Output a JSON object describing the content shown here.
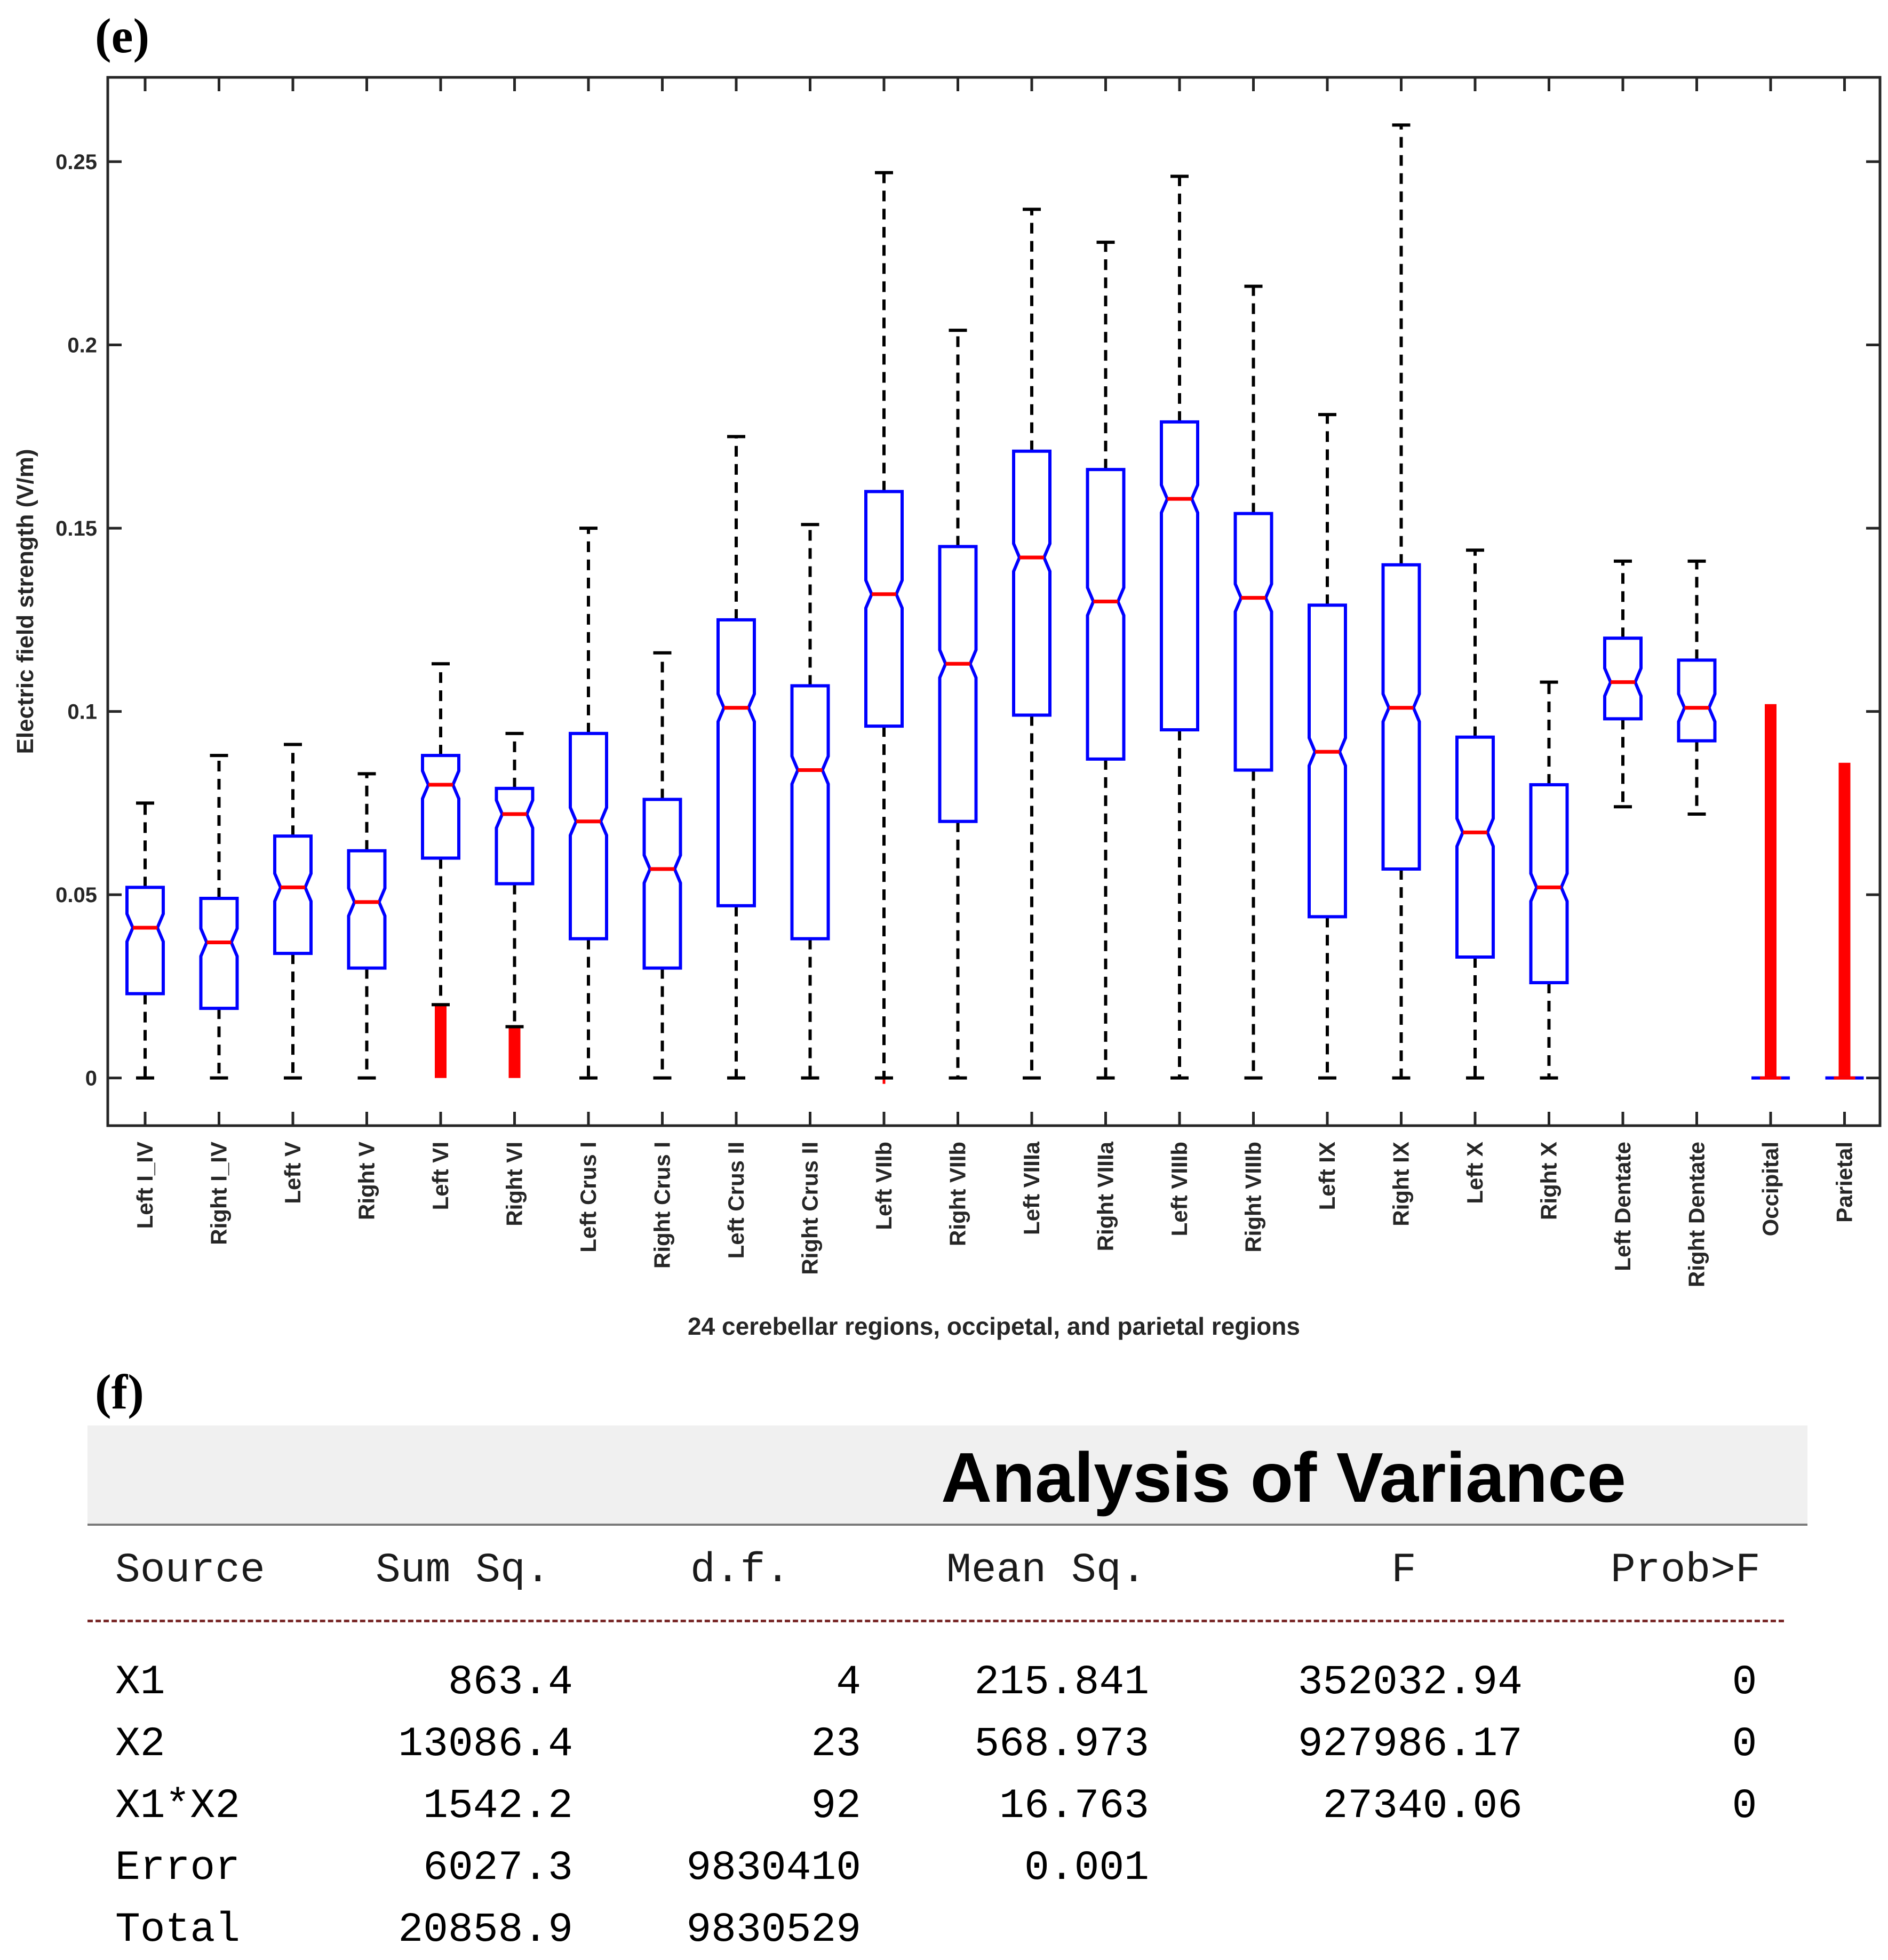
{
  "panel_e_label": "(e)",
  "panel_f_label": "(f)",
  "chart_data": {
    "type": "boxplot",
    "title": "",
    "xlabel": "24 cerebellar regions, occipetal, and parietal regions",
    "ylabel": "Electric field strength (V/m)",
    "ylim": [
      -0.013,
      0.273
    ],
    "yticks": [
      0,
      0.05,
      0.1,
      0.15,
      0.2,
      0.25
    ],
    "ytick_labels": [
      "0",
      "0.05",
      "0.1",
      "0.15",
      "0.2",
      "0.25"
    ],
    "notched": true,
    "colors": {
      "box": "#0000ff",
      "median": "#ff0000",
      "whisker": "#000000",
      "outlier": "#ff0000"
    },
    "categories": [
      "Left I_IV",
      "Right I_IV",
      "Left V",
      "Right V",
      "Left VI",
      "Right VI",
      "Left Crus I",
      "Right Crus I",
      "Left Crus II",
      "Right Crus II",
      "Left VIIb",
      "Right VIIb",
      "Left VIIIa",
      "Right VIIIa",
      "Left VIIIb",
      "Right VIIIb",
      "Left IX",
      "Right IX",
      "Left X",
      "Right X",
      "Left Dentate",
      "Right Dentate",
      "Occipital",
      "Parietal"
    ],
    "boxes": [
      {
        "whisker_low": 0,
        "q1": 0.023,
        "median": 0.041,
        "q3": 0.052,
        "whisker_high": 0.075
      },
      {
        "whisker_low": 0,
        "q1": 0.019,
        "median": 0.037,
        "q3": 0.049,
        "whisker_high": 0.088
      },
      {
        "whisker_low": 0,
        "q1": 0.034,
        "median": 0.052,
        "q3": 0.066,
        "whisker_high": 0.091
      },
      {
        "whisker_low": 0,
        "q1": 0.03,
        "median": 0.048,
        "q3": 0.062,
        "whisker_high": 0.083
      },
      {
        "whisker_low": 0.02,
        "q1": 0.06,
        "median": 0.08,
        "q3": 0.088,
        "whisker_high": 0.113,
        "outliers_range": [
          0,
          0.02
        ]
      },
      {
        "whisker_low": 0.014,
        "q1": 0.053,
        "median": 0.072,
        "q3": 0.079,
        "whisker_high": 0.094,
        "outliers_range": [
          0,
          0.014
        ]
      },
      {
        "whisker_low": 0,
        "q1": 0.038,
        "median": 0.07,
        "q3": 0.094,
        "whisker_high": 0.15
      },
      {
        "whisker_low": 0,
        "q1": 0.03,
        "median": 0.057,
        "q3": 0.076,
        "whisker_high": 0.116
      },
      {
        "whisker_low": 0,
        "q1": 0.047,
        "median": 0.101,
        "q3": 0.125,
        "whisker_high": 0.175
      },
      {
        "whisker_low": 0,
        "q1": 0.038,
        "median": 0.084,
        "q3": 0.107,
        "whisker_high": 0.151
      },
      {
        "whisker_low": 0,
        "q1": 0.096,
        "median": 0.132,
        "q3": 0.16,
        "whisker_high": 0.247,
        "outlier_points": [
          0
        ]
      },
      {
        "whisker_low": 0,
        "q1": 0.07,
        "median": 0.113,
        "q3": 0.145,
        "whisker_high": 0.204
      },
      {
        "whisker_low": 0,
        "q1": 0.099,
        "median": 0.142,
        "q3": 0.171,
        "whisker_high": 0.237
      },
      {
        "whisker_low": 0,
        "q1": 0.087,
        "median": 0.13,
        "q3": 0.166,
        "whisker_high": 0.228
      },
      {
        "whisker_low": 0,
        "q1": 0.095,
        "median": 0.158,
        "q3": 0.179,
        "whisker_high": 0.246
      },
      {
        "whisker_low": 0,
        "q1": 0.084,
        "median": 0.131,
        "q3": 0.154,
        "whisker_high": 0.216
      },
      {
        "whisker_low": 0,
        "q1": 0.044,
        "median": 0.089,
        "q3": 0.129,
        "whisker_high": 0.181
      },
      {
        "whisker_low": 0,
        "q1": 0.057,
        "median": 0.101,
        "q3": 0.14,
        "whisker_high": 0.26
      },
      {
        "whisker_low": 0,
        "q1": 0.033,
        "median": 0.067,
        "q3": 0.093,
        "whisker_high": 0.144
      },
      {
        "whisker_low": 0,
        "q1": 0.026,
        "median": 0.052,
        "q3": 0.08,
        "whisker_high": 0.108
      },
      {
        "whisker_low": 0.074,
        "q1": 0.098,
        "median": 0.108,
        "q3": 0.12,
        "whisker_high": 0.141
      },
      {
        "whisker_low": 0.072,
        "q1": 0.092,
        "median": 0.101,
        "q3": 0.114,
        "whisker_high": 0.141
      },
      {
        "whisker_low": 0,
        "q1": 0,
        "median": 0,
        "q3": 0,
        "whisker_high": 0,
        "outliers_range": [
          0,
          0.102
        ]
      },
      {
        "whisker_low": 0,
        "q1": 0,
        "median": 0,
        "q3": 0,
        "whisker_high": 0,
        "outliers_range": [
          0,
          0.086
        ]
      }
    ]
  },
  "anova": {
    "title": "Analysis of Variance",
    "columns": [
      "Source",
      "Sum Sq.",
      "d.f.",
      "Mean Sq.",
      "F",
      "Prob>F"
    ],
    "rows": [
      [
        "X1",
        "863.4",
        "4",
        "215.841",
        "352032.94",
        "0"
      ],
      [
        "X2",
        "13086.4",
        "23",
        "568.973",
        "927986.17",
        "0"
      ],
      [
        "X1*X2",
        "1542.2",
        "92",
        "16.763",
        "27340.06",
        "0"
      ],
      [
        "Error",
        "6027.3",
        "9830410",
        "0.001",
        "",
        ""
      ],
      [
        "Total",
        "20858.9",
        "9830529",
        "",
        "",
        ""
      ]
    ]
  }
}
